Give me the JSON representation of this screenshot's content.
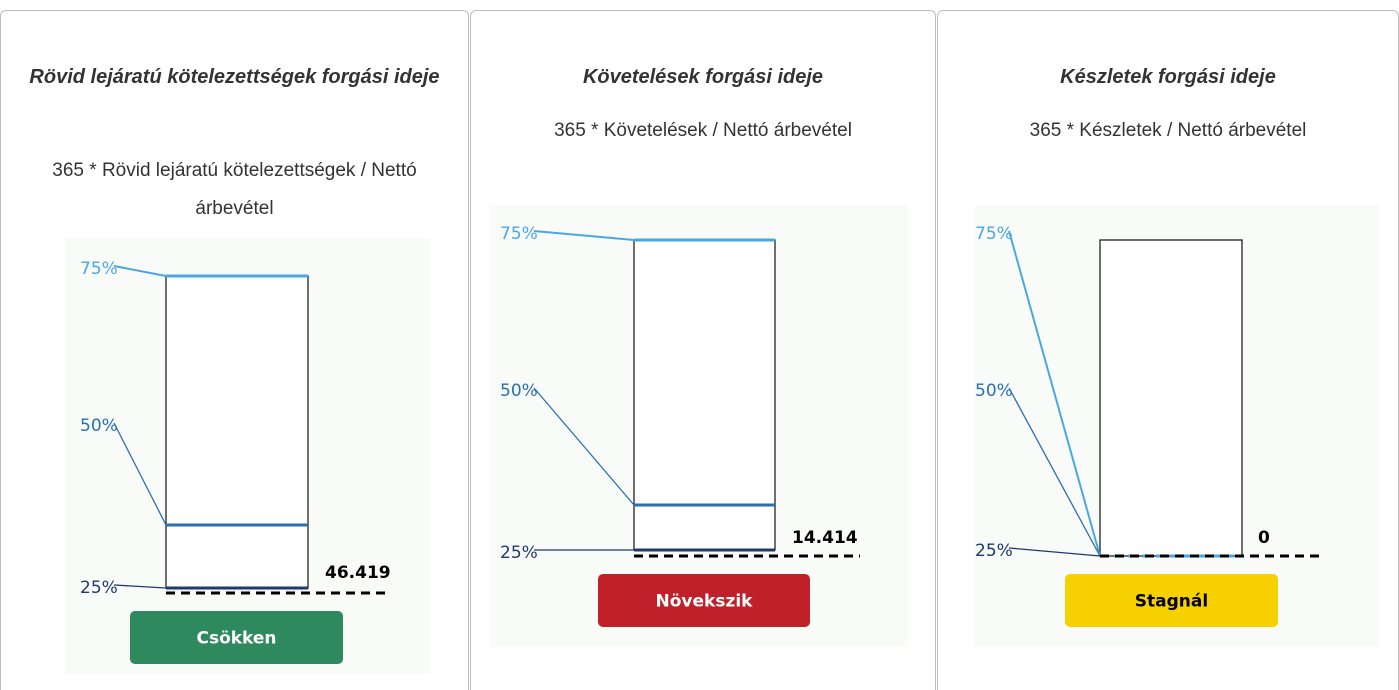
{
  "cards": [
    {
      "title": "Rövid lejáratú kötelezettségek forgási ideje",
      "formula": "365 * Rövid lejáratú kötelezettségek / Nettó árbevétel",
      "quartile_labels": [
        "75%",
        "50%",
        "25%"
      ],
      "value": "46.419",
      "status": "Csökken"
    },
    {
      "title": "Követelések forgási ideje",
      "formula": "365 * Követelések / Nettó árbevétel",
      "quartile_labels": [
        "75%",
        "50%",
        "25%"
      ],
      "value": "14.414",
      "status": "Növekszik"
    },
    {
      "title": "Készletek forgási ideje",
      "formula": "365 * Készletek / Nettó árbevétel",
      "quartile_labels": [
        "75%",
        "50%",
        "25%"
      ],
      "value": "0",
      "status": "Stagnál"
    }
  ]
}
